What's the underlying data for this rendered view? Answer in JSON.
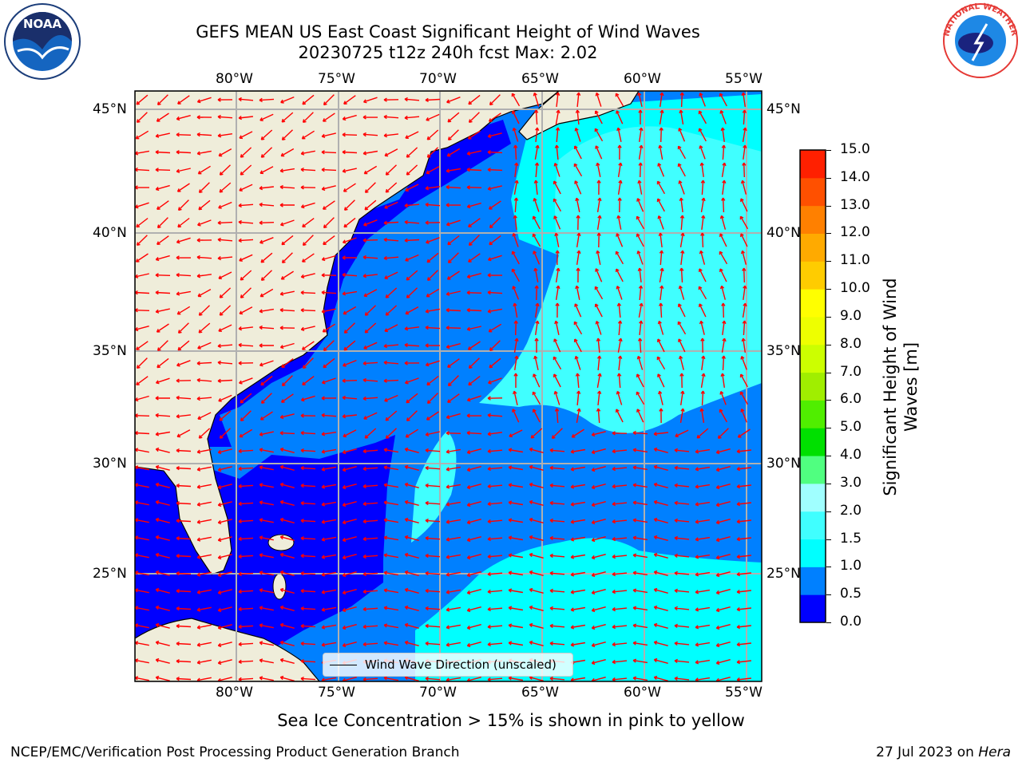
{
  "title": {
    "line1": "GEFS MEAN US East Coast Significant Height of Wind Waves",
    "line2": "20230725 t12z 240h fcst   Max: 2.02"
  },
  "logos": {
    "left": "NOAA",
    "right": "NATIONAL WEATHER SERVICE"
  },
  "map": {
    "lon_labels": [
      "80°W",
      "75°W",
      "70°W",
      "65°W",
      "60°W",
      "55°W"
    ],
    "lat_labels": [
      "45°N",
      "40°N",
      "35°N",
      "30°N",
      "25°N"
    ],
    "legend_label": "Wind Wave Direction (unscaled)",
    "arrow_color": "#ff0000",
    "land_color": "#efedda"
  },
  "colorbar": {
    "title_line1": "Significant Height of Wind",
    "title_line2": "Waves [m]",
    "ticks": [
      "0.0",
      "0.5",
      "1.0",
      "1.5",
      "2.0",
      "3.0",
      "4.0",
      "5.0",
      "6.0",
      "7.0",
      "8.0",
      "9.0",
      "10.0",
      "11.0",
      "12.0",
      "13.0",
      "14.0",
      "15.0"
    ],
    "colors": [
      "#0000ff",
      "#0080ff",
      "#00ffff",
      "#40ffff",
      "#a0ffff",
      "#50ff80",
      "#00e000",
      "#50ee00",
      "#a0ee00",
      "#ccff00",
      "#eeff00",
      "#ffff00",
      "#ffcc00",
      "#ffaa00",
      "#ff8000",
      "#ff5000",
      "#ff2000",
      "#ff0000"
    ]
  },
  "subtitle": "Sea Ice Concentration > 15% is shown in pink to yellow",
  "footer": {
    "left": "NCEP/EMC/Verification Post Processing Product Generation Branch",
    "right_date": "27 Jul 2023 on",
    "right_host": "Hera"
  },
  "chart_data": {
    "type": "heatmap",
    "variable": "Significant Height of Wind Waves [m]",
    "max": 2.02,
    "lon_range": [
      -85,
      -54.4
    ],
    "lat_range": [
      20.5,
      45.8
    ],
    "regions": [
      {
        "level": "0.0-0.5",
        "description": "near coast, Florida Straits, Bahamas, Gulf"
      },
      {
        "level": "0.5-1.0",
        "description": "open Atlantic west half"
      },
      {
        "level": "1.0-1.5",
        "description": "NE offshore and southern band"
      },
      {
        "level": "1.5-2.0",
        "description": "central Atlantic east of 65°W"
      }
    ]
  }
}
